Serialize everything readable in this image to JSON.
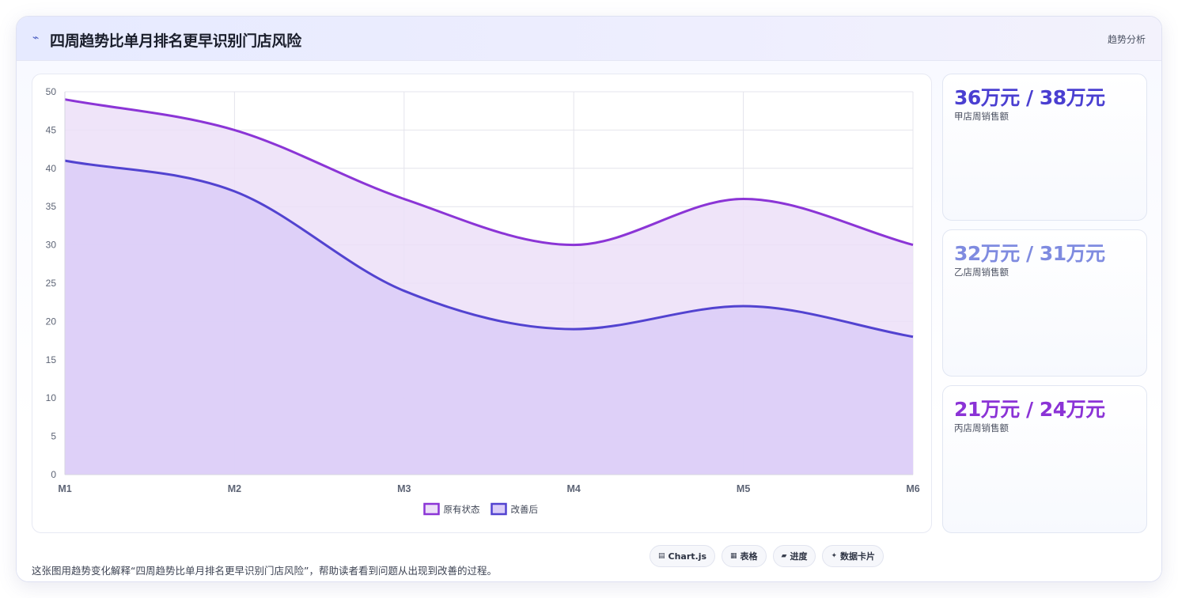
{
  "header": {
    "icon": "trend-line-icon",
    "title": "四周趋势比单月排名更早识别门店风险",
    "tag": "趋势分析"
  },
  "kpis": [
    {
      "value": "36万元 / 38万元",
      "label": "甲店周销售额",
      "color": "#4a3fd1"
    },
    {
      "value": "32万元 / 31万元",
      "label": "乙店周销售额",
      "color": "#7f8be0"
    },
    {
      "value": "21万元 / 24万元",
      "label": "丙店周销售额",
      "color": "#8b33d6"
    }
  ],
  "caption": "这张图用趋势变化解释“四周趋势比单月排名更早识别门店风险”，帮助读者看到问题从出现到改善的过程。",
  "chips": [
    {
      "icon": "chart-icon",
      "label": "Chart.js"
    },
    {
      "icon": "table-icon",
      "label": "表格"
    },
    {
      "icon": "progress-icon",
      "label": "进度"
    },
    {
      "icon": "data-card-icon",
      "label": "数据卡片"
    }
  ],
  "chart_data": {
    "type": "area",
    "x": [
      "M1",
      "M2",
      "M3",
      "M4",
      "M5",
      "M6"
    ],
    "series": [
      {
        "name": "原有状态",
        "values": [
          49,
          45,
          36,
          30,
          36,
          30
        ],
        "line_color": "#8b35d6",
        "fill_color": "#ecdff8"
      },
      {
        "name": "改善后",
        "values": [
          41,
          37,
          24,
          19,
          22,
          18
        ],
        "line_color": "#5243d0",
        "fill_color": "#dacdf8"
      }
    ],
    "ylim": [
      0,
      50
    ],
    "yticks": [
      0,
      5,
      10,
      15,
      20,
      25,
      30,
      35,
      40,
      45,
      50
    ],
    "grid": true,
    "legend": "bottom",
    "smooth": true
  }
}
